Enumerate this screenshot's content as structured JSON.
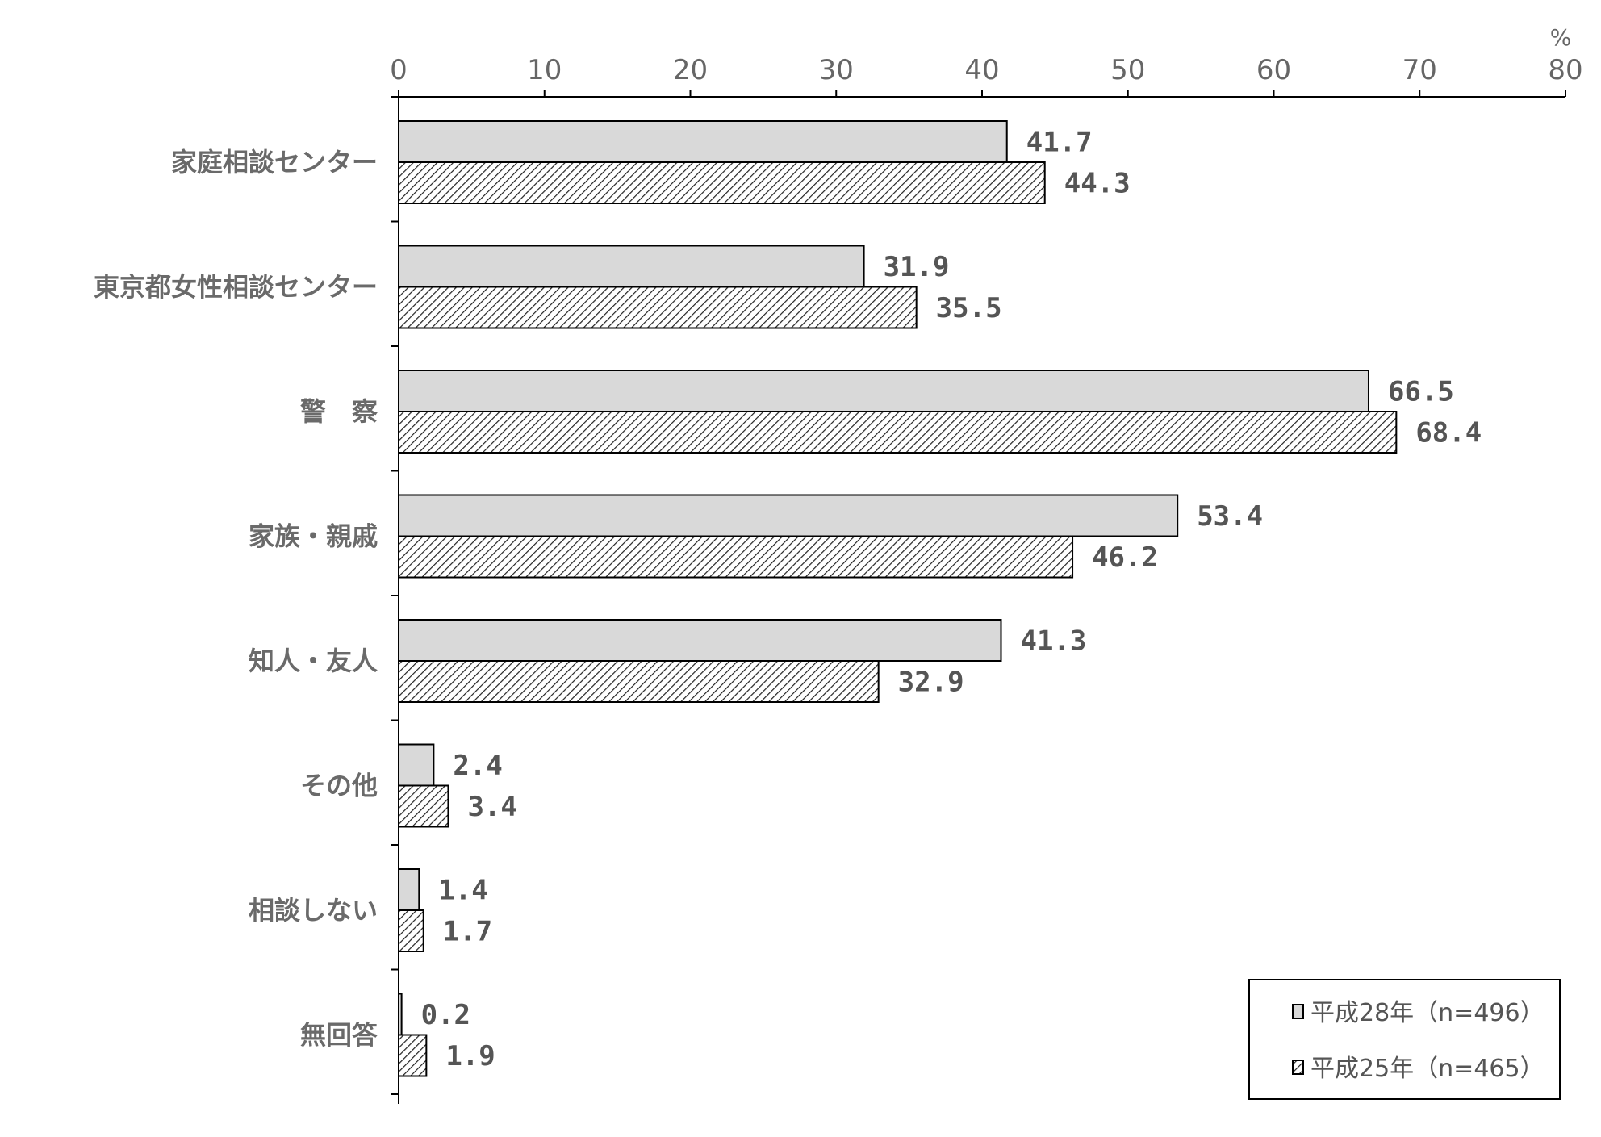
{
  "chart_data": {
    "type": "bar",
    "orientation": "horizontal",
    "unit": "%",
    "xlim": [
      0,
      80
    ],
    "ticks": [
      0,
      10,
      20,
      30,
      40,
      50,
      60,
      70,
      80
    ],
    "categories": [
      "家庭相談センター",
      "東京都女性相談センター",
      "警　察",
      "家族・親戚",
      "知人・友人",
      "その他",
      "相談しない",
      "無回答"
    ],
    "series": [
      {
        "name": "平成28年（n=496）",
        "fill": "solid-gray",
        "values": [
          41.7,
          31.9,
          66.5,
          53.4,
          41.3,
          2.4,
          1.4,
          0.2
        ]
      },
      {
        "name": "平成25年（n=465）",
        "fill": "hatched",
        "values": [
          44.3,
          35.5,
          68.4,
          46.2,
          32.9,
          3.4,
          1.7,
          1.9
        ]
      }
    ],
    "value_labels": [
      [
        "41.7",
        "31.9",
        "66.5",
        "53.4",
        "41.3",
        "2.4",
        "1.4",
        "0.2"
      ],
      [
        "44.3",
        "35.5",
        "68.4",
        "46.2",
        "32.9",
        "3.4",
        "1.7",
        "1.9"
      ]
    ],
    "grid": false,
    "legend_position": "bottom-right",
    "colors": {
      "solid": "#d9d9d9",
      "hatch": "#222222",
      "axis": "#000000",
      "text": "#666666"
    }
  }
}
